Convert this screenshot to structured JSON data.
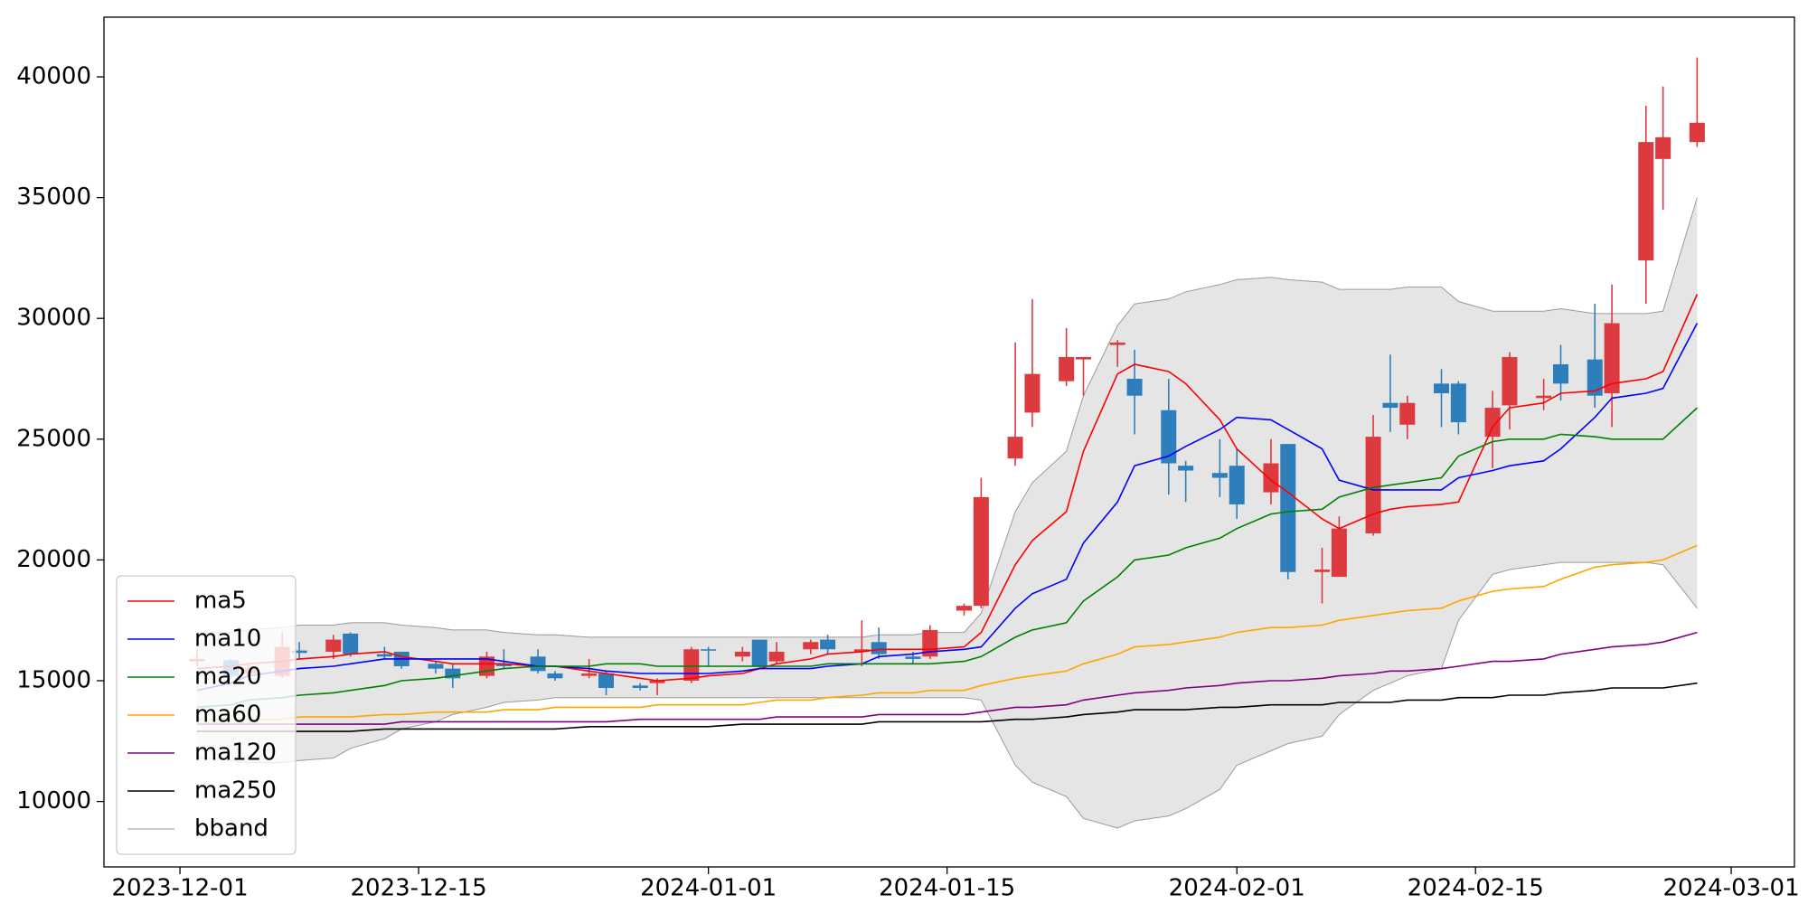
{
  "chart_data": {
    "type": "candlestick",
    "x": [
      "2023-12-02",
      "2023-12-04",
      "2023-12-05",
      "2023-12-07",
      "2023-12-08",
      "2023-12-10",
      "2023-12-11",
      "2023-12-13",
      "2023-12-14",
      "2023-12-16",
      "2023-12-17",
      "2023-12-19",
      "2023-12-20",
      "2023-12-22",
      "2023-12-23",
      "2023-12-25",
      "2023-12-26",
      "2023-12-28",
      "2023-12-29",
      "2023-12-31",
      "2024-01-01",
      "2024-01-03",
      "2024-01-04",
      "2024-01-05",
      "2024-01-07",
      "2024-01-08",
      "2024-01-10",
      "2024-01-11",
      "2024-01-13",
      "2024-01-14",
      "2024-01-16",
      "2024-01-17",
      "2024-01-19",
      "2024-01-20",
      "2024-01-22",
      "2024-01-23",
      "2024-01-25",
      "2024-01-26",
      "2024-01-28",
      "2024-01-29",
      "2024-01-31",
      "2024-02-01",
      "2024-02-03",
      "2024-02-04",
      "2024-02-06",
      "2024-02-07",
      "2024-02-09",
      "2024-02-10",
      "2024-02-11",
      "2024-02-13",
      "2024-02-14",
      "2024-02-16",
      "2024-02-17",
      "2024-02-19",
      "2024-02-20",
      "2024-02-22",
      "2024-02-23",
      "2024-02-25",
      "2024-02-26",
      "2024-02-28"
    ],
    "open": [
      15800,
      15850,
      15300,
      15200,
      16250,
      16200,
      16950,
      16100,
      16200,
      15700,
      15500,
      15200,
      15700,
      16000,
      15300,
      15200,
      15300,
      14800,
      14900,
      15000,
      16300,
      16000,
      16700,
      15800,
      16300,
      16700,
      16200,
      16600,
      16000,
      16000,
      17900,
      18100,
      24200,
      26100,
      27400,
      28300,
      28900,
      27500,
      26200,
      23900,
      23600,
      23900,
      22800,
      24800,
      19500,
      19300,
      21100,
      26500,
      25600,
      27300,
      27300,
      25100,
      26400,
      26700,
      28100,
      28300,
      26900,
      32400,
      36600,
      37300
    ],
    "high": [
      16300,
      15900,
      15700,
      17000,
      16600,
      16900,
      17000,
      16400,
      16200,
      15800,
      15700,
      16200,
      16300,
      16300,
      15400,
      15900,
      15400,
      14900,
      15100,
      16400,
      16400,
      16400,
      16700,
      16600,
      16700,
      16900,
      17500,
      17200,
      16200,
      17300,
      18200,
      23400,
      29000,
      30800,
      29600,
      28400,
      29100,
      28700,
      27500,
      24100,
      25000,
      24600,
      25000,
      24800,
      20500,
      21800,
      26000,
      28500,
      26800,
      27900,
      27400,
      27000,
      28600,
      27500,
      28900,
      30600,
      31400,
      38800,
      39600,
      40800
    ],
    "low": [
      15600,
      15100,
      15200,
      15100,
      15900,
      15900,
      16000,
      15900,
      15500,
      15300,
      14700,
      15100,
      15500,
      15300,
      15000,
      15100,
      14400,
      14600,
      14400,
      14900,
      15600,
      15800,
      15500,
      15700,
      16100,
      16100,
      15600,
      15900,
      15700,
      15900,
      17700,
      18000,
      23900,
      25500,
      27200,
      26800,
      28000,
      25200,
      22700,
      22400,
      22600,
      21700,
      22300,
      19200,
      18200,
      19300,
      21000,
      25300,
      25000,
      25500,
      25200,
      23800,
      25400,
      26200,
      26600,
      26300,
      25500,
      30600,
      34500,
      37100
    ],
    "close": [
      15900,
      15200,
      15500,
      16400,
      16150,
      16700,
      16100,
      16000,
      15600,
      15500,
      15100,
      16000,
      15600,
      15400,
      15100,
      15300,
      14700,
      14700,
      15000,
      16300,
      16250,
      16200,
      15600,
      16200,
      16600,
      16300,
      16300,
      16100,
      15900,
      17100,
      18100,
      22600,
      25100,
      27700,
      28400,
      28400,
      29000,
      26800,
      24000,
      23700,
      23400,
      22300,
      24000,
      19500,
      19600,
      21300,
      25100,
      26300,
      26500,
      26900,
      25700,
      26300,
      28400,
      26800,
      27300,
      26800,
      29800,
      37300,
      37500,
      38100
    ],
    "up_color": "#dc3a3e",
    "down_color": "#2e7ebc",
    "series": [
      {
        "name": "ma5",
        "color": "#ff0000",
        "values": [
          15500,
          15600,
          15700,
          15800,
          15900,
          16000,
          16100,
          16200,
          16000,
          15800,
          15700,
          15700,
          15700,
          15600,
          15600,
          15400,
          15300,
          15100,
          15000,
          15100,
          15200,
          15300,
          15500,
          15700,
          15900,
          16100,
          16200,
          16300,
          16300,
          16300,
          16400,
          17000,
          19800,
          20800,
          22000,
          24500,
          27700,
          28100,
          27800,
          27300,
          25800,
          24600,
          23300,
          22800,
          21700,
          21300,
          21900,
          22100,
          22200,
          22300,
          22400,
          25500,
          26300,
          26500,
          26900,
          27000,
          27300,
          27500,
          27800,
          31000
        ]
      },
      {
        "name": "ma10",
        "color": "#0000ff",
        "values": [
          14600,
          14900,
          15200,
          15400,
          15500,
          15600,
          15700,
          15900,
          15900,
          15900,
          15900,
          15900,
          15800,
          15600,
          15600,
          15500,
          15400,
          15300,
          15300,
          15300,
          15300,
          15400,
          15500,
          15500,
          15500,
          15600,
          15700,
          16000,
          16100,
          16200,
          16300,
          16400,
          18000,
          18600,
          19200,
          20700,
          22400,
          23900,
          24300,
          24700,
          25400,
          25900,
          25800,
          25400,
          24600,
          23300,
          22900,
          22900,
          22900,
          22900,
          23400,
          23700,
          23900,
          24100,
          24600,
          25900,
          26700,
          26900,
          27100,
          29800
        ]
      },
      {
        "name": "ma20",
        "color": "#008000",
        "values": [
          13900,
          14000,
          14200,
          14300,
          14400,
          14500,
          14600,
          14800,
          15000,
          15100,
          15200,
          15400,
          15500,
          15600,
          15600,
          15600,
          15700,
          15700,
          15600,
          15600,
          15600,
          15600,
          15600,
          15600,
          15600,
          15700,
          15700,
          15700,
          15700,
          15700,
          15800,
          16000,
          16800,
          17100,
          17400,
          18300,
          19300,
          20000,
          20200,
          20500,
          20900,
          21300,
          21900,
          22000,
          22100,
          22600,
          23000,
          23100,
          23200,
          23400,
          24300,
          24900,
          25000,
          25000,
          25200,
          25100,
          25000,
          25000,
          25000,
          26300
        ]
      },
      {
        "name": "ma60",
        "color": "#ffa500",
        "values": [
          13400,
          13400,
          13400,
          13400,
          13500,
          13500,
          13500,
          13600,
          13600,
          13700,
          13700,
          13700,
          13800,
          13800,
          13900,
          13900,
          13900,
          13900,
          14000,
          14000,
          14000,
          14000,
          14100,
          14200,
          14200,
          14300,
          14400,
          14500,
          14500,
          14600,
          14600,
          14800,
          15100,
          15200,
          15400,
          15700,
          16100,
          16400,
          16500,
          16600,
          16800,
          17000,
          17200,
          17200,
          17300,
          17500,
          17700,
          17800,
          17900,
          18000,
          18300,
          18700,
          18800,
          18900,
          19200,
          19700,
          19800,
          19900,
          20000,
          20600
        ]
      },
      {
        "name": "ma120",
        "color": "#800080",
        "values": [
          13200,
          13200,
          13200,
          13200,
          13200,
          13200,
          13200,
          13200,
          13300,
          13300,
          13300,
          13300,
          13300,
          13300,
          13300,
          13300,
          13300,
          13400,
          13400,
          13400,
          13400,
          13400,
          13400,
          13500,
          13500,
          13500,
          13500,
          13600,
          13600,
          13600,
          13600,
          13700,
          13900,
          13900,
          14000,
          14200,
          14400,
          14500,
          14600,
          14700,
          14800,
          14900,
          15000,
          15000,
          15100,
          15200,
          15300,
          15400,
          15400,
          15500,
          15600,
          15800,
          15800,
          15900,
          16100,
          16300,
          16400,
          16500,
          16600,
          17000
        ]
      },
      {
        "name": "ma250",
        "color": "#000000",
        "values": [
          12900,
          12900,
          12900,
          12900,
          12900,
          12900,
          12900,
          13000,
          13000,
          13000,
          13000,
          13000,
          13000,
          13000,
          13000,
          13100,
          13100,
          13100,
          13100,
          13100,
          13100,
          13200,
          13200,
          13200,
          13200,
          13200,
          13200,
          13300,
          13300,
          13300,
          13300,
          13300,
          13400,
          13400,
          13500,
          13600,
          13700,
          13800,
          13800,
          13800,
          13900,
          13900,
          14000,
          14000,
          14000,
          14100,
          14100,
          14100,
          14200,
          14200,
          14300,
          14300,
          14400,
          14400,
          14500,
          14600,
          14700,
          14700,
          14700,
          14900
        ]
      }
    ],
    "band": {
      "name": "bband",
      "color": "#e5e5e5",
      "edge_color": "#9a9a9a",
      "upper": [
        17000,
        17000,
        17100,
        17200,
        17300,
        17300,
        17400,
        17400,
        17300,
        17200,
        17100,
        17100,
        17000,
        16900,
        16900,
        16800,
        16800,
        16800,
        16800,
        16800,
        16800,
        16800,
        16800,
        16800,
        16800,
        16800,
        16800,
        16900,
        16900,
        17000,
        17000,
        17800,
        22000,
        23200,
        24500,
        26800,
        29700,
        30600,
        30800,
        31100,
        31400,
        31600,
        31700,
        31600,
        31500,
        31200,
        31200,
        31200,
        31300,
        31300,
        30700,
        30300,
        30300,
        30300,
        30400,
        30200,
        30200,
        30200,
        30300,
        35000
      ],
      "lower": [
        11800,
        11700,
        11600,
        11600,
        11700,
        11800,
        12200,
        12600,
        13000,
        13300,
        13600,
        13900,
        14100,
        14200,
        14300,
        14300,
        14300,
        14300,
        14300,
        14300,
        14300,
        14300,
        14300,
        14300,
        14300,
        14300,
        14300,
        14300,
        14300,
        14300,
        14300,
        14200,
        11500,
        10800,
        10200,
        9300,
        8900,
        9200,
        9400,
        9700,
        10500,
        11500,
        12100,
        12400,
        12700,
        13600,
        14600,
        14900,
        15200,
        15500,
        17500,
        19400,
        19600,
        19800,
        19900,
        19900,
        19900,
        19900,
        19800,
        18000
      ]
    },
    "xlim": [
      "2023-11-26T13:00",
      "2024-03-04T17:00"
    ],
    "xticks": [
      "2023-12-01",
      "2023-12-15",
      "2024-01-01",
      "2024-01-15",
      "2024-02-01",
      "2024-02-15",
      "2024-03-01"
    ],
    "ylim": [
      7290,
      42470
    ],
    "yticks": [
      10000,
      15000,
      20000,
      25000,
      30000,
      35000,
      40000
    ],
    "legend": "lower left"
  }
}
